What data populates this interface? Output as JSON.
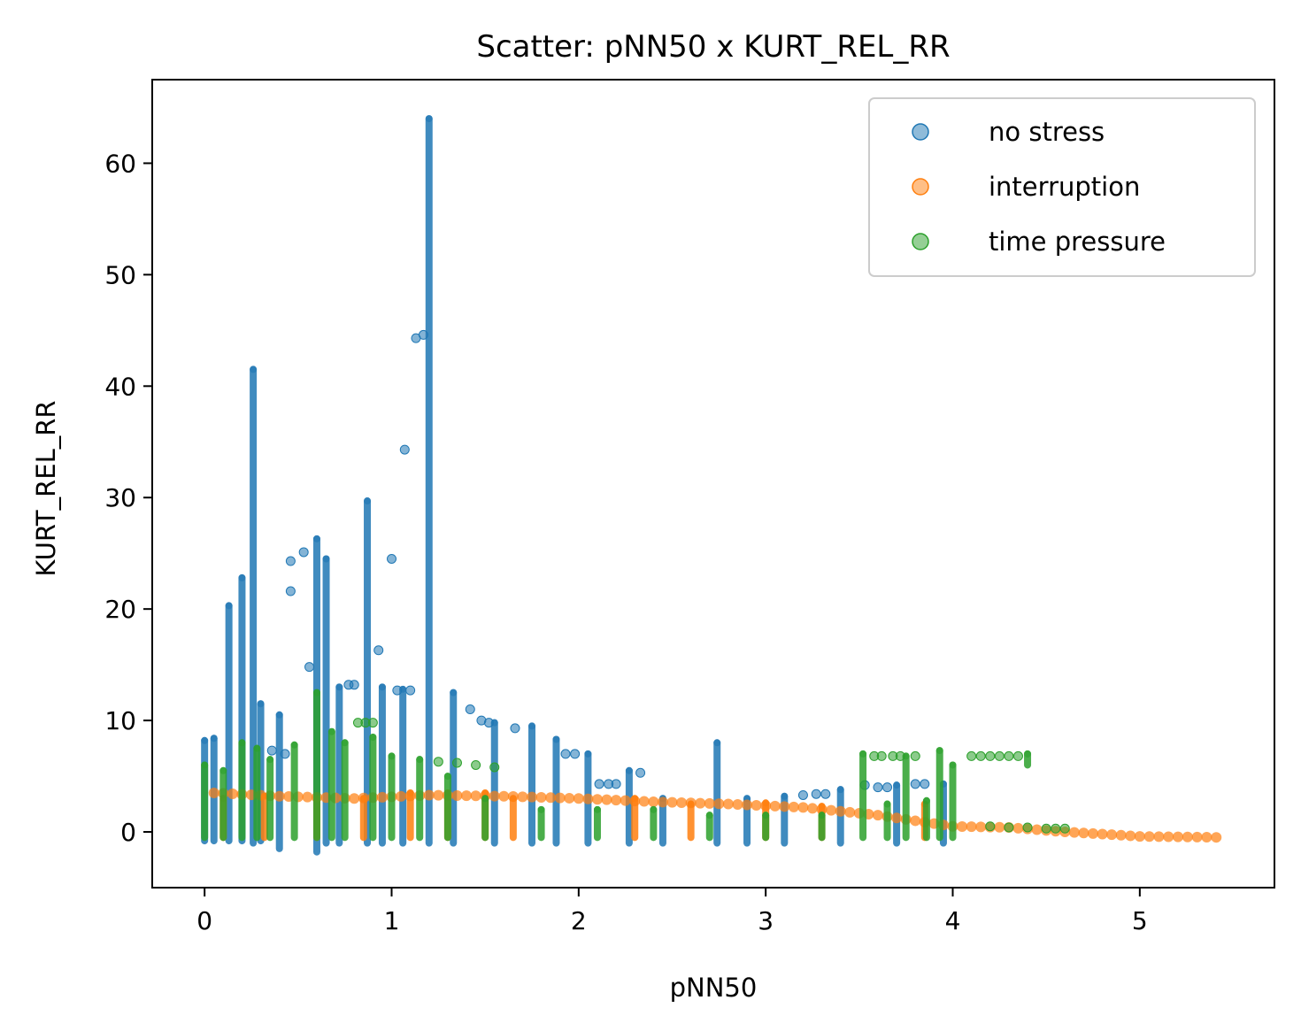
{
  "chart_data": {
    "type": "scatter",
    "title": "Scatter: pNN50 x KURT_REL_RR",
    "xlabel": "pNN50",
    "ylabel": "KURT_REL_RR",
    "xlim": [
      -0.28,
      5.72
    ],
    "ylim": [
      -5,
      67.5
    ],
    "xticks": [
      0,
      1,
      2,
      3,
      4,
      5
    ],
    "yticks": [
      0,
      10,
      20,
      30,
      40,
      50,
      60
    ],
    "grid": false,
    "legend_position": "top-right",
    "series": [
      {
        "name": "no stress",
        "color": "#1f77b4",
        "columns": [
          [
            0.0,
            -0.8,
            8.2
          ],
          [
            0.05,
            -0.8,
            8.4
          ],
          [
            0.13,
            -0.8,
            20.3
          ],
          [
            0.2,
            -0.8,
            22.8
          ],
          [
            0.26,
            -1.0,
            41.5
          ],
          [
            0.3,
            -0.8,
            11.5
          ],
          [
            0.4,
            -1.5,
            10.5
          ],
          [
            0.6,
            -1.8,
            26.3
          ],
          [
            0.65,
            -1.0,
            24.5
          ],
          [
            0.72,
            -1.0,
            13.0
          ],
          [
            0.87,
            -1.0,
            29.7
          ],
          [
            0.95,
            -1.0,
            13.0
          ],
          [
            1.06,
            -1.0,
            12.8
          ],
          [
            1.2,
            -1.0,
            64.0
          ],
          [
            1.33,
            -1.0,
            12.5
          ],
          [
            1.55,
            -1.0,
            9.8
          ],
          [
            1.75,
            -1.0,
            9.5
          ],
          [
            1.88,
            -1.0,
            8.3
          ],
          [
            2.05,
            -1.0,
            7.0
          ],
          [
            2.27,
            -1.0,
            5.5
          ],
          [
            2.45,
            -1.0,
            3.0
          ],
          [
            2.74,
            -1.0,
            8.0
          ],
          [
            2.9,
            -1.0,
            3.0
          ],
          [
            3.1,
            -1.0,
            3.2
          ],
          [
            3.4,
            -1.0,
            3.8
          ],
          [
            3.7,
            -1.0,
            4.2
          ],
          [
            3.95,
            -1.0,
            4.3
          ]
        ],
        "points": [
          [
            0.46,
            24.3
          ],
          [
            0.46,
            21.6
          ],
          [
            0.53,
            25.1
          ],
          [
            0.56,
            14.8
          ],
          [
            1.0,
            24.5
          ],
          [
            1.07,
            34.3
          ],
          [
            1.13,
            44.3
          ],
          [
            1.17,
            44.6
          ],
          [
            0.93,
            16.3
          ],
          [
            0.77,
            13.2
          ],
          [
            0.8,
            13.2
          ],
          [
            1.03,
            12.7
          ],
          [
            1.1,
            12.7
          ],
          [
            1.42,
            11.0
          ],
          [
            1.48,
            10.0
          ],
          [
            1.52,
            9.8
          ],
          [
            1.66,
            9.3
          ],
          [
            1.93,
            7.0
          ],
          [
            1.98,
            7.0
          ],
          [
            2.11,
            4.3
          ],
          [
            2.16,
            4.3
          ],
          [
            2.2,
            4.3
          ],
          [
            2.33,
            5.3
          ],
          [
            3.2,
            3.3
          ],
          [
            3.27,
            3.4
          ],
          [
            3.32,
            3.4
          ],
          [
            3.53,
            4.2
          ],
          [
            3.6,
            4.0
          ],
          [
            3.65,
            4.0
          ],
          [
            3.8,
            4.3
          ],
          [
            3.85,
            4.3
          ],
          [
            0.36,
            7.3
          ],
          [
            0.43,
            7.0
          ]
        ]
      },
      {
        "name": "interruption",
        "color": "#ff7f0e",
        "columns": [
          [
            0.1,
            -0.5,
            3.0
          ],
          [
            0.32,
            -0.5,
            3.2
          ],
          [
            0.6,
            -0.5,
            3.0
          ],
          [
            0.85,
            -0.5,
            3.0
          ],
          [
            1.1,
            -0.5,
            3.5
          ],
          [
            1.3,
            -0.5,
            3.5
          ],
          [
            1.5,
            -0.5,
            3.5
          ],
          [
            1.65,
            -0.5,
            3.0
          ],
          [
            2.3,
            -0.5,
            3.0
          ],
          [
            2.6,
            -0.5,
            2.5
          ],
          [
            3.0,
            -0.5,
            2.6
          ],
          [
            3.3,
            -0.5,
            2.3
          ],
          [
            3.85,
            -0.5,
            2.5
          ]
        ],
        "trend": [
          [
            0.05,
            3.5
          ],
          [
            0.4,
            3.2
          ],
          [
            0.8,
            3.0
          ],
          [
            1.2,
            3.3
          ],
          [
            1.6,
            3.2
          ],
          [
            2.0,
            3.0
          ],
          [
            2.4,
            2.7
          ],
          [
            2.8,
            2.5
          ],
          [
            3.2,
            2.2
          ],
          [
            3.6,
            1.5
          ],
          [
            4.0,
            0.5
          ],
          [
            4.3,
            0.4
          ],
          [
            4.6,
            0.0
          ],
          [
            5.0,
            -0.4
          ],
          [
            5.46,
            -0.5
          ]
        ]
      },
      {
        "name": "time pressure",
        "color": "#2ca02c",
        "columns": [
          [
            0.0,
            -0.5,
            6.0
          ],
          [
            0.1,
            -0.5,
            5.5
          ],
          [
            0.2,
            -0.5,
            8.0
          ],
          [
            0.28,
            -0.5,
            7.5
          ],
          [
            0.35,
            -0.5,
            6.5
          ],
          [
            0.48,
            -0.5,
            7.8
          ],
          [
            0.6,
            -0.5,
            12.5
          ],
          [
            0.68,
            -0.5,
            9.0
          ],
          [
            0.75,
            -0.5,
            8.0
          ],
          [
            0.9,
            -0.5,
            8.5
          ],
          [
            1.0,
            -0.5,
            6.8
          ],
          [
            1.15,
            -0.5,
            6.5
          ],
          [
            1.3,
            -0.5,
            5.0
          ],
          [
            1.5,
            -0.5,
            3.0
          ],
          [
            1.8,
            -0.5,
            2.0
          ],
          [
            2.1,
            -0.5,
            2.0
          ],
          [
            2.4,
            -0.5,
            2.0
          ],
          [
            2.7,
            -0.5,
            1.5
          ],
          [
            3.0,
            -0.5,
            1.5
          ],
          [
            3.3,
            -0.5,
            1.5
          ],
          [
            3.52,
            -0.5,
            7.0
          ],
          [
            3.65,
            -0.5,
            2.5
          ],
          [
            3.75,
            -0.5,
            6.8
          ],
          [
            3.86,
            -0.5,
            2.8
          ],
          [
            3.93,
            -0.5,
            7.3
          ],
          [
            4.0,
            -0.5,
            6.0
          ],
          [
            4.4,
            6.0,
            7.0
          ]
        ],
        "points": [
          [
            3.58,
            6.8
          ],
          [
            3.62,
            6.8
          ],
          [
            3.68,
            6.8
          ],
          [
            3.72,
            6.8
          ],
          [
            3.8,
            6.8
          ],
          [
            4.1,
            6.8
          ],
          [
            4.15,
            6.8
          ],
          [
            4.2,
            6.8
          ],
          [
            4.25,
            6.8
          ],
          [
            4.3,
            6.8
          ],
          [
            4.35,
            6.8
          ],
          [
            4.2,
            0.5
          ],
          [
            4.3,
            0.4
          ],
          [
            4.4,
            0.4
          ],
          [
            4.5,
            0.3
          ],
          [
            4.55,
            0.3
          ],
          [
            4.6,
            0.3
          ],
          [
            0.82,
            9.8
          ],
          [
            0.86,
            9.8
          ],
          [
            0.9,
            9.8
          ],
          [
            1.25,
            6.3
          ],
          [
            1.35,
            6.2
          ],
          [
            1.45,
            6.0
          ],
          [
            1.55,
            5.8
          ]
        ]
      }
    ]
  }
}
